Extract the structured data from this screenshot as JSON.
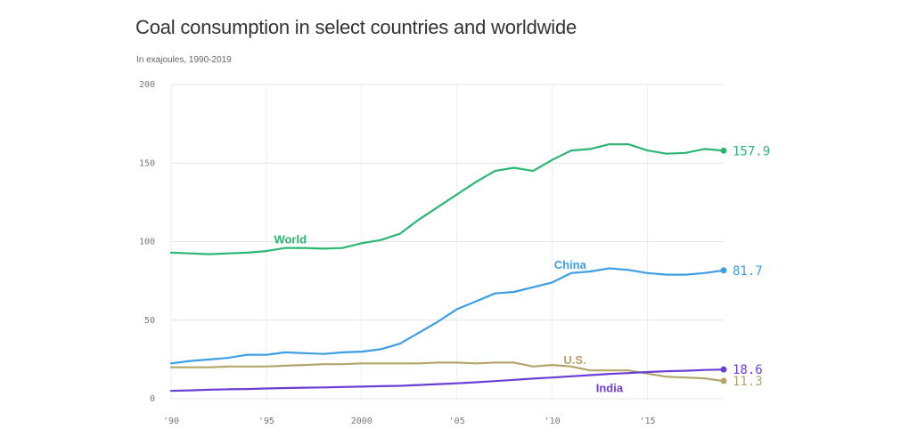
{
  "chart_data": {
    "type": "line",
    "title": "Coal consumption in select countries and worldwide",
    "subtitle": "In exajoules, 1990-2019",
    "xlabel": "",
    "ylabel": "",
    "xlim": [
      1990,
      2019
    ],
    "ylim": [
      0,
      200
    ],
    "grid": true,
    "x": [
      1990,
      1991,
      1992,
      1993,
      1994,
      1995,
      1996,
      1997,
      1998,
      1999,
      2000,
      2001,
      2002,
      2003,
      2004,
      2005,
      2006,
      2007,
      2008,
      2009,
      2010,
      2011,
      2012,
      2013,
      2014,
      2015,
      2016,
      2017,
      2018,
      2019
    ],
    "y_ticks": [
      {
        "value": 0,
        "label": "0"
      },
      {
        "value": 50,
        "label": "50"
      },
      {
        "value": 100,
        "label": "100"
      },
      {
        "value": 150,
        "label": "150"
      },
      {
        "value": 200,
        "label": "200"
      }
    ],
    "x_ticks": [
      {
        "value": 1990,
        "label": "'90"
      },
      {
        "value": 1995,
        "label": "'95"
      },
      {
        "value": 2000,
        "label": "2000"
      },
      {
        "value": 2005,
        "label": "'05"
      },
      {
        "value": 2010,
        "label": "'10"
      },
      {
        "value": 2015,
        "label": "'15"
      }
    ],
    "series": [
      {
        "name": "World",
        "color": "#2bb673",
        "end_label": "157.9",
        "label_year": 1995.4,
        "label_value": 101,
        "values": [
          93,
          92.5,
          92,
          92.5,
          93,
          94,
          96,
          96,
          95.5,
          96,
          99,
          101,
          105,
          114,
          122,
          130,
          138,
          145,
          147,
          145,
          152,
          158,
          159,
          162,
          162,
          158,
          156,
          156.5,
          159,
          157.9
        ]
      },
      {
        "name": "China",
        "color": "#3c9ee5",
        "end_label": "81.7",
        "label_year": 2010.1,
        "label_value": 85,
        "values": [
          22.5,
          24,
          25,
          26,
          28,
          28,
          29.5,
          29,
          28.5,
          29.5,
          30,
          31.5,
          35,
          42,
          49,
          57,
          62,
          67,
          68,
          71,
          74,
          80,
          81,
          83,
          82,
          80,
          79,
          79,
          80,
          81.7
        ]
      },
      {
        "name": "U.S.",
        "color": "#b4a56a",
        "end_label": "11.3",
        "label_year": 2010.6,
        "label_value": 24.5,
        "values": [
          20,
          20,
          20,
          20.5,
          20.5,
          20.5,
          21,
          21.5,
          22,
          22,
          22.5,
          22.5,
          22.5,
          22.5,
          23,
          23,
          22.5,
          23,
          23,
          20.5,
          21.5,
          20.5,
          18,
          18,
          18,
          16,
          14,
          13.5,
          13,
          11.3
        ]
      },
      {
        "name": "India",
        "color": "#6b3fd6",
        "end_label": "18.6",
        "label_year": 2012.3,
        "label_value": 6.5,
        "values": [
          5,
          5.3,
          5.7,
          6,
          6.2,
          6.5,
          6.8,
          7,
          7.2,
          7.5,
          7.7,
          8,
          8.2,
          8.7,
          9.3,
          9.8,
          10.5,
          11.2,
          12,
          12.8,
          13.5,
          14.3,
          15,
          15.8,
          16.3,
          17,
          17.5,
          17.8,
          18.3,
          18.6
        ]
      }
    ]
  }
}
